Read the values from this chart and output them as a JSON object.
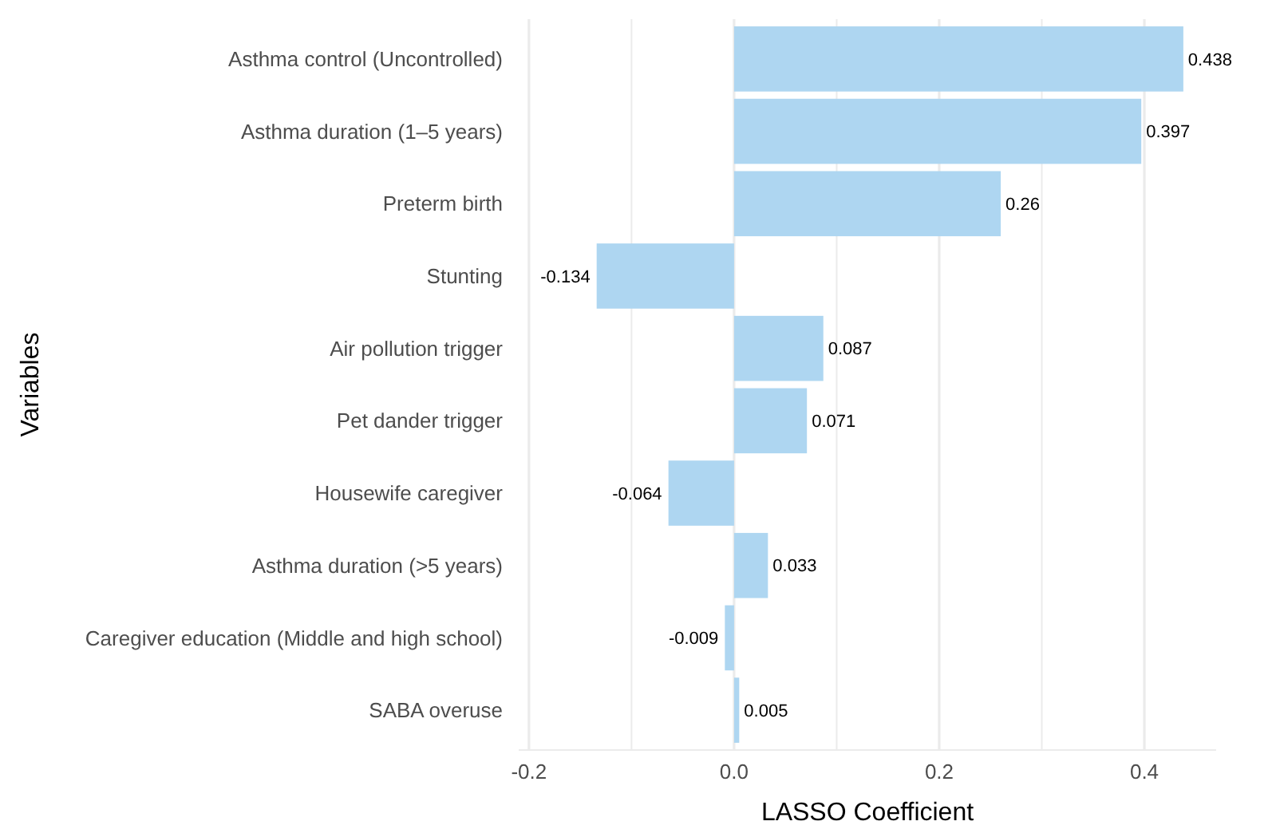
{
  "chart_data": {
    "type": "bar",
    "orientation": "horizontal",
    "xlabel": "LASSO Coefficient",
    "ylabel": "Variables",
    "categories": [
      "Asthma control (Uncontrolled)",
      "Asthma duration (1–5 years)",
      "Preterm birth",
      "Stunting",
      "Air pollution trigger",
      "Pet dander trigger",
      "Housewife caregiver",
      "Asthma duration (>5 years)",
      "Caregiver education (Middle and high school)",
      "SABA overuse"
    ],
    "values": [
      0.438,
      0.397,
      0.26,
      -0.134,
      0.087,
      0.071,
      -0.064,
      0.033,
      -0.009,
      0.005
    ],
    "color": "#aed6f1",
    "data_labels": true,
    "xlim": [
      -0.21,
      0.47
    ],
    "xticks": [
      {
        "value": -0.2,
        "label": "-0.2"
      },
      {
        "value": -0.1,
        "label": null
      },
      {
        "value": 0,
        "label": "0.0"
      },
      {
        "value": 0.1,
        "label": null
      },
      {
        "value": 0.2,
        "label": "0.2"
      },
      {
        "value": 0.3,
        "label": null
      },
      {
        "value": 0.4,
        "label": "0.4"
      }
    ],
    "grid": "x"
  }
}
